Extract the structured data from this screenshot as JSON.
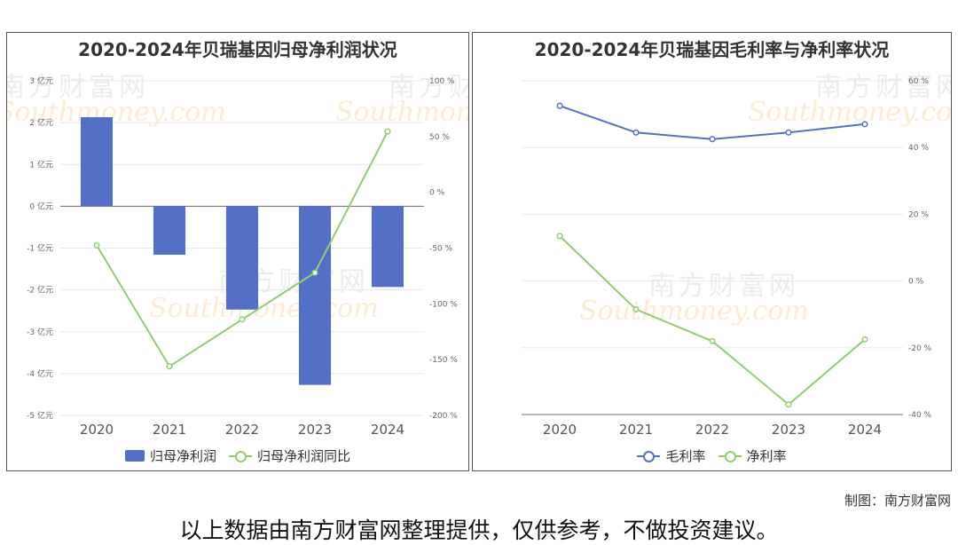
{
  "left_chart": {
    "title": "2020-2024年贝瑞基因归母净利润状况",
    "legend": {
      "bar": "归母净利润",
      "line": "归母净利润同比"
    }
  },
  "right_chart": {
    "title": "2020-2024年贝瑞基因毛利率与净利率状况",
    "legend": {
      "gross": "毛利率",
      "net": "净利率"
    }
  },
  "credit": "制图：南方财富网",
  "footer_note": "以上数据由南方财富网整理提供，仅供参考，不做投资建议。",
  "watermark": {
    "cn": "南方财富网",
    "en": "Southmoney.com"
  },
  "colors": {
    "bar": "#5470c6",
    "line_green": "#91cc75",
    "line_blue": "#5470c6"
  },
  "chart_data": [
    {
      "type": "bar",
      "title": "2020-2024年贝瑞基因归母净利润状况",
      "categories": [
        "2020",
        "2021",
        "2022",
        "2023",
        "2024"
      ],
      "series": [
        {
          "name": "归母净利润",
          "type": "bar",
          "axis": "left",
          "values": [
            2.13,
            -1.16,
            -2.47,
            -4.27,
            -1.93
          ]
        },
        {
          "name": "归母净利润同比",
          "type": "line",
          "axis": "right",
          "values": [
            -47.5,
            -156,
            -114,
            -72,
            54.5
          ]
        }
      ],
      "y_left": {
        "min": -5,
        "max": 3,
        "step": 1,
        "tick_suffix": " 亿元"
      },
      "y_right": {
        "min": -200,
        "max": 100,
        "step": 50,
        "tick_suffix": " %"
      },
      "grid": true,
      "legend_position": "bottom"
    },
    {
      "type": "line",
      "title": "2020-2024年贝瑞基因毛利率与净利率状况",
      "categories": [
        "2020",
        "2021",
        "2022",
        "2023",
        "2024"
      ],
      "series": [
        {
          "name": "毛利率",
          "values": [
            52.5,
            44.5,
            42.5,
            44.5,
            47
          ]
        },
        {
          "name": "净利率",
          "values": [
            13.5,
            -8.5,
            -18,
            -37,
            -17.5
          ]
        }
      ],
      "y_right": {
        "min": -40,
        "max": 60,
        "step": 20,
        "tick_suffix": " %"
      },
      "grid": true,
      "legend_position": "bottom"
    }
  ]
}
